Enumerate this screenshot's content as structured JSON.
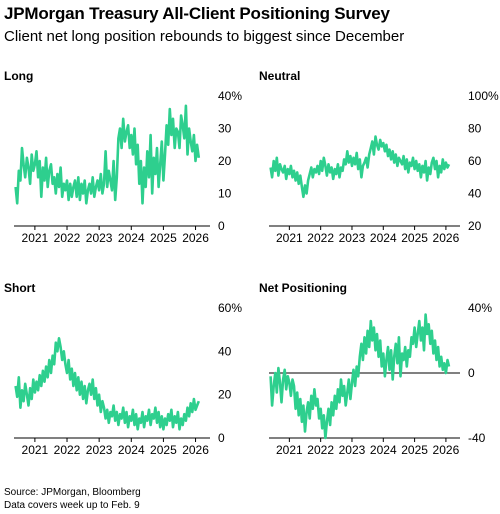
{
  "header": {
    "title": "JPMorgan Treasury All-Client Positioning Survey",
    "subtitle": "Client net long position rebounds to biggest since December"
  },
  "footer": {
    "source": "Source: JPMorgan, Bloomberg",
    "note": "Data covers week up to Feb. 9"
  },
  "colors": {
    "line": "#2ecf8e",
    "axis": "#000000",
    "text": "#000000"
  },
  "chart_data": [
    {
      "type": "line",
      "title": "Long",
      "ylim": [
        0,
        40
      ],
      "yticks": [
        "0",
        "10",
        "20",
        "30",
        "40%"
      ],
      "ytick_values": [
        0,
        10,
        20,
        30,
        40
      ],
      "xticks": [
        "2021",
        "2022",
        "2023",
        "2024",
        "2025",
        "2026"
      ],
      "xlim": [
        2020.35,
        2026.45
      ],
      "zero_line": false,
      "series": [
        {
          "x": [
            2020.4,
            2020.45,
            2020.5,
            2020.55,
            2020.6,
            2020.65,
            2020.7,
            2020.75,
            2020.8,
            2020.85,
            2020.9,
            2020.95,
            2021.0,
            2021.05,
            2021.1,
            2021.15,
            2021.2,
            2021.25,
            2021.3,
            2021.35,
            2021.4,
            2021.45,
            2021.5,
            2021.55,
            2021.6,
            2021.65,
            2021.7,
            2021.75,
            2021.8,
            2021.85,
            2021.9,
            2021.95,
            2022.0,
            2022.05,
            2022.1,
            2022.15,
            2022.2,
            2022.25,
            2022.3,
            2022.35,
            2022.4,
            2022.45,
            2022.5,
            2022.55,
            2022.6,
            2022.65,
            2022.7,
            2022.75,
            2022.8,
            2022.85,
            2022.9,
            2022.95,
            2023.0,
            2023.05,
            2023.1,
            2023.15,
            2023.2,
            2023.25,
            2023.3,
            2023.35,
            2023.4,
            2023.45,
            2023.5,
            2023.55,
            2023.6,
            2023.65,
            2023.7,
            2023.75,
            2023.8,
            2023.85,
            2023.9,
            2023.95,
            2024.0,
            2024.05,
            2024.1,
            2024.15,
            2024.2,
            2024.25,
            2024.3,
            2024.35,
            2024.4,
            2024.45,
            2024.5,
            2024.55,
            2024.6,
            2024.65,
            2024.7,
            2024.75,
            2024.8,
            2024.85,
            2024.9,
            2024.95,
            2025.0,
            2025.05,
            2025.1,
            2025.15,
            2025.2,
            2025.25,
            2025.3,
            2025.35,
            2025.4,
            2025.45,
            2025.5,
            2025.55,
            2025.6,
            2025.65,
            2025.7,
            2025.75,
            2025.8,
            2025.85,
            2025.9,
            2025.95,
            2026.0,
            2026.05,
            2026.1
          ],
          "y": [
            12,
            7,
            17,
            14,
            24,
            19,
            15,
            21,
            18,
            13,
            22,
            17,
            19,
            23,
            15,
            20,
            9,
            18,
            14,
            21,
            12,
            17,
            19,
            13,
            15,
            10,
            16,
            12,
            18,
            9,
            13,
            11,
            14,
            8,
            13,
            9,
            12,
            14,
            9,
            15,
            8,
            13,
            10,
            14,
            7,
            11,
            13,
            10,
            15,
            9,
            12,
            14,
            11,
            16,
            10,
            13,
            23,
            12,
            17,
            14,
            11,
            20,
            8,
            15,
            27,
            30,
            24,
            33,
            26,
            29,
            31,
            24,
            28,
            22,
            30,
            19,
            25,
            13,
            20,
            7,
            18,
            12,
            23,
            15,
            28,
            10,
            21,
            16,
            24,
            12,
            19,
            26,
            14,
            22,
            31,
            25,
            36,
            28,
            33,
            24,
            30,
            29,
            24,
            34,
            31,
            27,
            37,
            22,
            30,
            26,
            23,
            28,
            20,
            25,
            21
          ]
        }
      ]
    },
    {
      "type": "line",
      "title": "Neutral",
      "ylim": [
        20,
        100
      ],
      "yticks": [
        "20",
        "40",
        "60",
        "80",
        "100%"
      ],
      "ytick_values": [
        20,
        40,
        60,
        80,
        100
      ],
      "xticks": [
        "2021",
        "2022",
        "2023",
        "2024",
        "2025",
        "2026"
      ],
      "xlim": [
        2020.35,
        2026.45
      ],
      "zero_line": false,
      "series": [
        {
          "x": [
            2020.4,
            2020.45,
            2020.5,
            2020.55,
            2020.6,
            2020.65,
            2020.7,
            2020.75,
            2020.8,
            2020.85,
            2020.9,
            2020.95,
            2021.0,
            2021.05,
            2021.1,
            2021.15,
            2021.2,
            2021.25,
            2021.3,
            2021.35,
            2021.4,
            2021.45,
            2021.5,
            2021.55,
            2021.6,
            2021.65,
            2021.7,
            2021.75,
            2021.8,
            2021.85,
            2021.9,
            2021.95,
            2022.0,
            2022.05,
            2022.1,
            2022.15,
            2022.2,
            2022.25,
            2022.3,
            2022.35,
            2022.4,
            2022.45,
            2022.5,
            2022.55,
            2022.6,
            2022.65,
            2022.7,
            2022.75,
            2022.8,
            2022.85,
            2022.9,
            2022.95,
            2023.0,
            2023.05,
            2023.1,
            2023.15,
            2023.2,
            2023.25,
            2023.3,
            2023.35,
            2023.4,
            2023.45,
            2023.5,
            2023.55,
            2023.6,
            2023.65,
            2023.7,
            2023.75,
            2023.8,
            2023.85,
            2023.9,
            2023.95,
            2024.0,
            2024.05,
            2024.1,
            2024.15,
            2024.2,
            2024.25,
            2024.3,
            2024.35,
            2024.4,
            2024.45,
            2024.5,
            2024.55,
            2024.6,
            2024.65,
            2024.7,
            2024.75,
            2024.8,
            2024.85,
            2024.9,
            2024.95,
            2025.0,
            2025.05,
            2025.1,
            2025.15,
            2025.2,
            2025.25,
            2025.3,
            2025.35,
            2025.4,
            2025.45,
            2025.5,
            2025.55,
            2025.6,
            2025.65,
            2025.7,
            2025.75,
            2025.8,
            2025.85,
            2025.9,
            2025.95,
            2026.0,
            2026.05,
            2026.1
          ],
          "y": [
            56,
            50,
            60,
            54,
            62,
            51,
            58,
            55,
            53,
            57,
            49,
            55,
            52,
            57,
            50,
            54,
            48,
            53,
            46,
            51,
            44,
            38,
            45,
            40,
            48,
            52,
            56,
            50,
            55,
            53,
            57,
            52,
            60,
            54,
            62,
            57,
            51,
            58,
            53,
            56,
            49,
            55,
            52,
            58,
            50,
            56,
            54,
            61,
            58,
            66,
            59,
            63,
            57,
            62,
            58,
            65,
            55,
            61,
            50,
            57,
            59,
            62,
            56,
            64,
            68,
            72,
            64,
            75,
            70,
            67,
            73,
            69,
            71,
            66,
            70,
            63,
            67,
            61,
            66,
            59,
            64,
            57,
            62,
            60,
            58,
            63,
            55,
            61,
            53,
            59,
            57,
            62,
            55,
            60,
            54,
            58,
            50,
            57,
            53,
            60,
            48,
            56,
            52,
            59,
            62,
            55,
            60,
            50,
            57,
            53,
            61,
            55,
            59,
            56,
            58
          ]
        }
      ]
    },
    {
      "type": "line",
      "title": "Short",
      "ylim": [
        0,
        60
      ],
      "yticks": [
        "0",
        "20",
        "40",
        "60%"
      ],
      "ytick_values": [
        0,
        20,
        40,
        60
      ],
      "xticks": [
        "2021",
        "2022",
        "2023",
        "2024",
        "2025",
        "2026"
      ],
      "xlim": [
        2020.35,
        2026.45
      ],
      "zero_line": false,
      "series": [
        {
          "x": [
            2020.4,
            2020.45,
            2020.5,
            2020.55,
            2020.6,
            2020.65,
            2020.7,
            2020.75,
            2020.8,
            2020.85,
            2020.9,
            2020.95,
            2021.0,
            2021.05,
            2021.1,
            2021.15,
            2021.2,
            2021.25,
            2021.3,
            2021.35,
            2021.4,
            2021.45,
            2021.5,
            2021.55,
            2021.6,
            2021.65,
            2021.7,
            2021.75,
            2021.8,
            2021.85,
            2021.9,
            2021.95,
            2022.0,
            2022.05,
            2022.1,
            2022.15,
            2022.2,
            2022.25,
            2022.3,
            2022.35,
            2022.4,
            2022.45,
            2022.5,
            2022.55,
            2022.6,
            2022.65,
            2022.7,
            2022.75,
            2022.8,
            2022.85,
            2022.9,
            2022.95,
            2023.0,
            2023.05,
            2023.1,
            2023.15,
            2023.2,
            2023.25,
            2023.3,
            2023.35,
            2023.4,
            2023.45,
            2023.5,
            2023.55,
            2023.6,
            2023.65,
            2023.7,
            2023.75,
            2023.8,
            2023.85,
            2023.9,
            2023.95,
            2024.0,
            2024.05,
            2024.1,
            2024.15,
            2024.2,
            2024.25,
            2024.3,
            2024.35,
            2024.4,
            2024.45,
            2024.5,
            2024.55,
            2024.6,
            2024.65,
            2024.7,
            2024.75,
            2024.8,
            2024.85,
            2024.9,
            2024.95,
            2025.0,
            2025.05,
            2025.1,
            2025.15,
            2025.2,
            2025.25,
            2025.3,
            2025.35,
            2025.4,
            2025.45,
            2025.5,
            2025.55,
            2025.6,
            2025.65,
            2025.7,
            2025.75,
            2025.8,
            2025.85,
            2025.9,
            2025.95,
            2026.0,
            2026.05,
            2026.1
          ],
          "y": [
            24,
            19,
            28,
            14,
            22,
            17,
            25,
            20,
            15,
            23,
            18,
            27,
            21,
            26,
            22,
            29,
            24,
            31,
            26,
            33,
            28,
            36,
            30,
            38,
            34,
            44,
            40,
            46,
            42,
            36,
            40,
            34,
            30,
            36,
            27,
            32,
            24,
            30,
            22,
            28,
            20,
            26,
            18,
            24,
            16,
            22,
            25,
            20,
            27,
            18,
            23,
            15,
            20,
            12,
            17,
            14,
            9,
            13,
            7,
            12,
            10,
            15,
            8,
            12,
            6,
            11,
            9,
            14,
            7,
            12,
            5,
            10,
            8,
            13,
            6,
            11,
            4,
            9,
            7,
            12,
            5,
            10,
            8,
            13,
            6,
            11,
            9,
            14,
            7,
            12,
            5,
            10,
            4,
            9,
            6,
            11,
            8,
            13,
            5,
            10,
            7,
            12,
            4,
            9,
            6,
            11,
            8,
            14,
            10,
            16,
            12,
            18,
            13,
            15,
            17
          ]
        }
      ]
    },
    {
      "type": "line",
      "title": "Net Positioning",
      "ylim": [
        -40,
        40
      ],
      "yticks": [
        "-40",
        "0",
        "40%"
      ],
      "ytick_values": [
        -40,
        0,
        40
      ],
      "xticks": [
        "2021",
        "2022",
        "2023",
        "2024",
        "2025",
        "2026"
      ],
      "xlim": [
        2020.35,
        2026.45
      ],
      "zero_line": true,
      "series": [
        {
          "x": [
            2020.4,
            2020.45,
            2020.5,
            2020.55,
            2020.6,
            2020.65,
            2020.7,
            2020.75,
            2020.8,
            2020.85,
            2020.9,
            2020.95,
            2021.0,
            2021.05,
            2021.1,
            2021.15,
            2021.2,
            2021.25,
            2021.3,
            2021.35,
            2021.4,
            2021.45,
            2021.5,
            2021.55,
            2021.6,
            2021.65,
            2021.7,
            2021.75,
            2021.8,
            2021.85,
            2021.9,
            2021.95,
            2022.0,
            2022.05,
            2022.1,
            2022.15,
            2022.2,
            2022.25,
            2022.3,
            2022.35,
            2022.4,
            2022.45,
            2022.5,
            2022.55,
            2022.6,
            2022.65,
            2022.7,
            2022.75,
            2022.8,
            2022.85,
            2022.9,
            2022.95,
            2023.0,
            2023.05,
            2023.1,
            2023.15,
            2023.2,
            2023.25,
            2023.3,
            2023.35,
            2023.4,
            2023.45,
            2023.5,
            2023.55,
            2023.6,
            2023.65,
            2023.7,
            2023.75,
            2023.8,
            2023.85,
            2023.9,
            2023.95,
            2024.0,
            2024.05,
            2024.1,
            2024.15,
            2024.2,
            2024.25,
            2024.3,
            2024.35,
            2024.4,
            2024.45,
            2024.5,
            2024.55,
            2024.6,
            2024.65,
            2024.7,
            2024.75,
            2024.8,
            2024.85,
            2024.9,
            2024.95,
            2025.0,
            2025.05,
            2025.1,
            2025.15,
            2025.2,
            2025.25,
            2025.3,
            2025.35,
            2025.4,
            2025.45,
            2025.5,
            2025.55,
            2025.6,
            2025.65,
            2025.7,
            2025.75,
            2025.8,
            2025.85,
            2025.9,
            2025.95,
            2026.0,
            2026.05,
            2026.1
          ],
          "y": [
            -2,
            -20,
            -8,
            0,
            -12,
            3,
            -6,
            -18,
            -4,
            2,
            -10,
            -2,
            -6,
            -14,
            -4,
            -8,
            -22,
            -12,
            -26,
            -16,
            -30,
            -20,
            -36,
            -24,
            -18,
            -28,
            -14,
            -22,
            -10,
            -20,
            -16,
            -28,
            -22,
            -34,
            -26,
            -40,
            -30,
            -22,
            -32,
            -18,
            -26,
            -14,
            -22,
            -10,
            -18,
            -4,
            -14,
            -8,
            -20,
            -12,
            -4,
            -16,
            -6,
            2,
            -8,
            4,
            -2,
            10,
            18,
            8,
            22,
            12,
            26,
            16,
            32,
            20,
            28,
            14,
            24,
            10,
            20,
            4,
            12,
            -2,
            8,
            16,
            2,
            14,
            -4,
            10,
            18,
            6,
            22,
            -2,
            12,
            8,
            16,
            4,
            14,
            10,
            22,
            18,
            28,
            16,
            24,
            32,
            20,
            28,
            14,
            36,
            24,
            30,
            18,
            26,
            12,
            20,
            8,
            16,
            4,
            10,
            2,
            6,
            0,
            8,
            4
          ]
        }
      ]
    }
  ]
}
